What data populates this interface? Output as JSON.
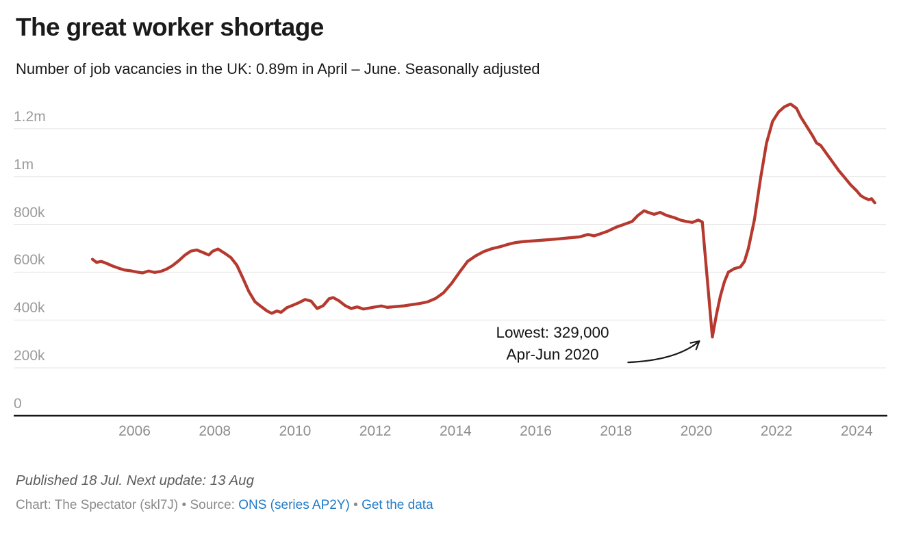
{
  "header": {
    "title": "The great worker shortage",
    "subtitle": "Number of job vacancies in the UK: 0.89m in April – June. Seasonally adjusted"
  },
  "chart_data": {
    "type": "line",
    "title": "The great worker shortage",
    "series_name": "UK job vacancies (thousands, seasonally adjusted)",
    "unit": "thousands",
    "xlim": [
      2004.95,
      2024.45
    ],
    "ylim": [
      0,
      1200
    ],
    "grid": true,
    "legend": "none",
    "x_ticks": [
      {
        "value": 2006,
        "label": "2006"
      },
      {
        "value": 2008,
        "label": "2008"
      },
      {
        "value": 2010,
        "label": "2010"
      },
      {
        "value": 2012,
        "label": "2012"
      },
      {
        "value": 2014,
        "label": "2014"
      },
      {
        "value": 2016,
        "label": "2016"
      },
      {
        "value": 2018,
        "label": "2018"
      },
      {
        "value": 2020,
        "label": "2020"
      },
      {
        "value": 2022,
        "label": "2022"
      },
      {
        "value": 2024,
        "label": "2024"
      }
    ],
    "y_ticks": [
      {
        "value": 0,
        "label": "0"
      },
      {
        "value": 200,
        "label": "200k"
      },
      {
        "value": 400,
        "label": "400k"
      },
      {
        "value": 600,
        "label": "600k"
      },
      {
        "value": 800,
        "label": "800k"
      },
      {
        "value": 1000,
        "label": "1m"
      },
      {
        "value": 1200,
        "label": "1.2m"
      }
    ],
    "x": [
      2004.95,
      2005.05,
      2005.17,
      2005.3,
      2005.45,
      2005.6,
      2005.75,
      2005.9,
      2006.05,
      2006.2,
      2006.35,
      2006.5,
      2006.65,
      2006.8,
      2006.95,
      2007.1,
      2007.25,
      2007.4,
      2007.55,
      2007.7,
      2007.85,
      2007.95,
      2008.08,
      2008.25,
      2008.4,
      2008.55,
      2008.7,
      2008.85,
      2009.0,
      2009.15,
      2009.3,
      2009.42,
      2009.55,
      2009.65,
      2009.8,
      2009.95,
      2010.1,
      2010.25,
      2010.4,
      2010.55,
      2010.7,
      2010.85,
      2010.95,
      2011.1,
      2011.25,
      2011.4,
      2011.55,
      2011.7,
      2011.85,
      2012.0,
      2012.15,
      2012.3,
      2012.5,
      2012.7,
      2012.9,
      2013.1,
      2013.3,
      2013.5,
      2013.7,
      2013.9,
      2014.1,
      2014.3,
      2014.5,
      2014.7,
      2014.9,
      2015.1,
      2015.3,
      2015.5,
      2015.7,
      2015.95,
      2016.25,
      2016.55,
      2016.85,
      2017.1,
      2017.3,
      2017.45,
      2017.6,
      2017.8,
      2018.0,
      2018.2,
      2018.4,
      2018.55,
      2018.7,
      2018.8,
      2018.95,
      2019.1,
      2019.25,
      2019.45,
      2019.6,
      2019.75,
      2019.9,
      2020.05,
      2020.15,
      2020.4,
      2020.5,
      2020.6,
      2020.7,
      2020.8,
      2020.95,
      2021.1,
      2021.2,
      2021.3,
      2021.45,
      2021.6,
      2021.75,
      2021.9,
      2022.05,
      2022.2,
      2022.35,
      2022.5,
      2022.6,
      2022.75,
      2022.9,
      2023.0,
      2023.1,
      2023.25,
      2023.4,
      2023.55,
      2023.7,
      2023.85,
      2024.0,
      2024.1,
      2024.2,
      2024.3,
      2024.37,
      2024.45
    ],
    "values": [
      654,
      641,
      645,
      637,
      626,
      617,
      609,
      606,
      601,
      597,
      605,
      599,
      603,
      613,
      628,
      648,
      671,
      688,
      693,
      683,
      672,
      688,
      697,
      679,
      661,
      629,
      575,
      519,
      477,
      457,
      438,
      428,
      438,
      432,
      452,
      462,
      473,
      486,
      479,
      448,
      460,
      489,
      494,
      480,
      460,
      448,
      455,
      446,
      450,
      455,
      459,
      453,
      456,
      459,
      464,
      469,
      476,
      490,
      514,
      553,
      600,
      645,
      668,
      686,
      698,
      706,
      716,
      724,
      728,
      731,
      735,
      739,
      744,
      748,
      758,
      752,
      760,
      772,
      788,
      800,
      812,
      838,
      857,
      850,
      842,
      850,
      838,
      828,
      818,
      812,
      808,
      818,
      810,
      329,
      420,
      500,
      560,
      600,
      615,
      622,
      645,
      700,
      820,
      990,
      1140,
      1230,
      1270,
      1292,
      1303,
      1285,
      1250,
      1210,
      1170,
      1140,
      1130,
      1095,
      1060,
      1025,
      995,
      965,
      940,
      920,
      910,
      903,
      907,
      890
    ],
    "annotation": {
      "line1": "Lowest: 329,000",
      "line2": "Apr-Jun 2020",
      "target_year": 2020.4,
      "target_value": 329
    }
  },
  "footer": {
    "published": "Published 18 Jul. Next update: 13 Aug",
    "credit_chart": "Chart: The Spectator (skl7J)",
    "bullet": "•",
    "source_label": "Source:",
    "source_link": "ONS (series AP2Y)",
    "get_data_link": "Get the data"
  },
  "colors": {
    "line": "#b5392e",
    "link": "#1f7bc7",
    "grid": "#e7e7e7",
    "axis": "#161616",
    "axis_label": "#9b9b9b",
    "tick_label": "#8e8e8e",
    "text": "#1a1a1a",
    "note": "#5d5d5d",
    "credit": "#8b8b8b",
    "arrow": "#1a1a1a"
  }
}
